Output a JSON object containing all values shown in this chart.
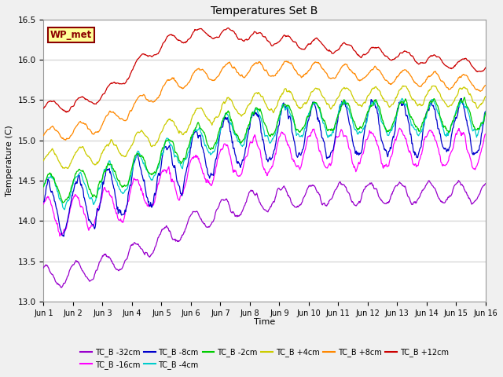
{
  "title": "Temperatures Set B",
  "xlabel": "Time",
  "ylabel": "Temperature (C)",
  "ylim": [
    13.0,
    16.5
  ],
  "xlim": [
    0,
    900
  ],
  "plot_bg_color": "#ffffff",
  "fig_bg_color": "#f0f0f0",
  "grid_color": "#d8d8d8",
  "annotation_text": "WP_met",
  "annotation_bg": "#ffff99",
  "annotation_border": "#8b0000",
  "annotation_text_color": "#8b0000",
  "series": [
    {
      "name": "TC_B -32cm",
      "color": "#9900cc",
      "start": 13.25,
      "end": 14.35,
      "peak_t": 850,
      "osc_amp": 0.13,
      "osc_period": 60,
      "osc_phase": 1.0
    },
    {
      "name": "TC_B -16cm",
      "color": "#ff00ff",
      "start": 14.0,
      "end": 14.9,
      "peak_t": 800,
      "osc_amp": 0.22,
      "osc_period": 60,
      "osc_phase": 0.8
    },
    {
      "name": "TC_B -8cm",
      "color": "#0000cc",
      "start": 14.1,
      "end": 15.15,
      "peak_t": 750,
      "osc_amp": 0.32,
      "osc_period": 60,
      "osc_phase": 0.5
    },
    {
      "name": "TC_B -4cm",
      "color": "#00cccc",
      "start": 14.3,
      "end": 15.28,
      "peak_t": 700,
      "osc_amp": 0.2,
      "osc_period": 60,
      "osc_phase": 0.3
    },
    {
      "name": "TC_B -2cm",
      "color": "#00cc00",
      "start": 14.35,
      "end": 15.32,
      "peak_t": 680,
      "osc_amp": 0.18,
      "osc_period": 60,
      "osc_phase": 0.2
    },
    {
      "name": "TC_B +4cm",
      "color": "#cccc00",
      "start": 14.7,
      "end": 15.55,
      "peak_t": 620,
      "osc_amp": 0.12,
      "osc_period": 60,
      "osc_phase": 0.0
    },
    {
      "name": "TC_B +8cm",
      "color": "#ff8800",
      "start": 15.05,
      "end": 15.6,
      "peak_t": 500,
      "osc_amp": 0.09,
      "osc_period": 60,
      "osc_phase": -0.1
    },
    {
      "name": "TC_B +12cm",
      "color": "#cc0000",
      "start": 15.4,
      "end": 15.6,
      "peak_t": 350,
      "osc_amp": 0.07,
      "osc_period": 60,
      "osc_phase": -0.2
    }
  ],
  "xtick_labels": [
    "Jun 1",
    "Jun 2",
    "Jun 3",
    "Jun 4",
    "Jun 5",
    "Jun 6",
    "Jun 7",
    "Jun 8",
    "Jun 9",
    "Jun 10",
    "Jun 11",
    "Jun 12",
    "Jun 13",
    "Jun 14",
    "Jun 15",
    "Jun 16"
  ],
  "xtick_positions": [
    0,
    60,
    120,
    180,
    240,
    300,
    360,
    420,
    480,
    540,
    600,
    660,
    720,
    780,
    840,
    900
  ],
  "ytick_labels": [
    "13.0",
    "13.5",
    "14.0",
    "14.5",
    "15.0",
    "15.5",
    "16.0",
    "16.5"
  ],
  "ytick_positions": [
    13.0,
    13.5,
    14.0,
    14.5,
    15.0,
    15.5,
    16.0,
    16.5
  ]
}
